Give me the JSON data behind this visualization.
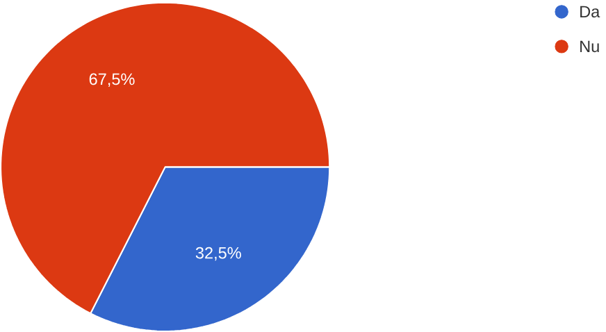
{
  "chart_data": {
    "type": "pie",
    "categories": [
      "Da",
      "Nu"
    ],
    "values": [
      32.5,
      67.5
    ],
    "colors": [
      "#3366cc",
      "#dc3912"
    ],
    "value_labels": [
      "32,5%",
      "67,5%"
    ],
    "legend": "top right"
  }
}
